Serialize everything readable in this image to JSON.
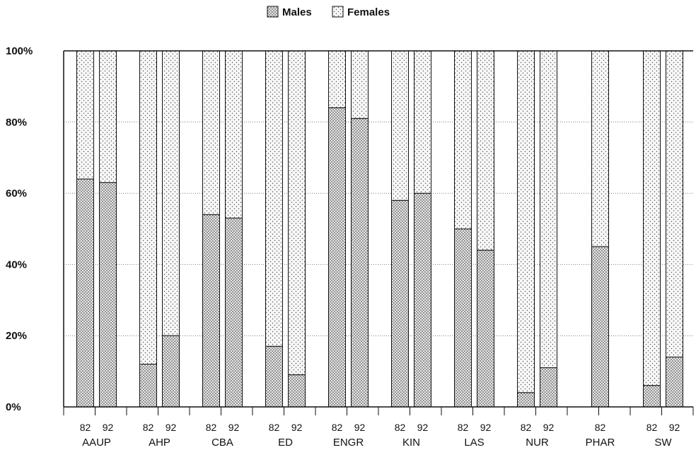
{
  "chart_data": {
    "type": "bar",
    "stacked": true,
    "percent": true,
    "legend": [
      {
        "name": "Males",
        "pattern": "dense-dots"
      },
      {
        "name": "Females",
        "pattern": "sparse-dots"
      }
    ],
    "legend_position": "top-center",
    "y_ticks": [
      "0%",
      "20%",
      "40%",
      "60%",
      "80%",
      "100%"
    ],
    "ylim": [
      0,
      100
    ],
    "grid": "horizontal-dotted",
    "groups": [
      {
        "name": "AAUP",
        "bars": [
          {
            "year": "82",
            "males": 64
          },
          {
            "year": "92",
            "males": 63
          }
        ]
      },
      {
        "name": "AHP",
        "bars": [
          {
            "year": "82",
            "males": 12
          },
          {
            "year": "92",
            "males": 20
          }
        ]
      },
      {
        "name": "CBA",
        "bars": [
          {
            "year": "82",
            "males": 54
          },
          {
            "year": "92",
            "males": 53
          }
        ]
      },
      {
        "name": "ED",
        "bars": [
          {
            "year": "82",
            "males": 17
          },
          {
            "year": "92",
            "males": 9
          }
        ]
      },
      {
        "name": "ENGR",
        "bars": [
          {
            "year": "82",
            "males": 84
          },
          {
            "year": "92",
            "males": 81
          }
        ]
      },
      {
        "name": "KIN",
        "bars": [
          {
            "year": "82",
            "males": 58
          },
          {
            "year": "92",
            "males": 60
          }
        ]
      },
      {
        "name": "LAS",
        "bars": [
          {
            "year": "82",
            "males": 50
          },
          {
            "year": "92",
            "males": 44
          }
        ]
      },
      {
        "name": "NUR",
        "bars": [
          {
            "year": "82",
            "males": 4
          },
          {
            "year": "92",
            "males": 11
          }
        ]
      },
      {
        "name": "PHAR",
        "bars": [
          {
            "year": "82",
            "males": 45
          }
        ]
      },
      {
        "name": "SW",
        "bars": [
          {
            "year": "82",
            "males": 6
          },
          {
            "year": "92",
            "males": 14
          }
        ]
      }
    ]
  }
}
